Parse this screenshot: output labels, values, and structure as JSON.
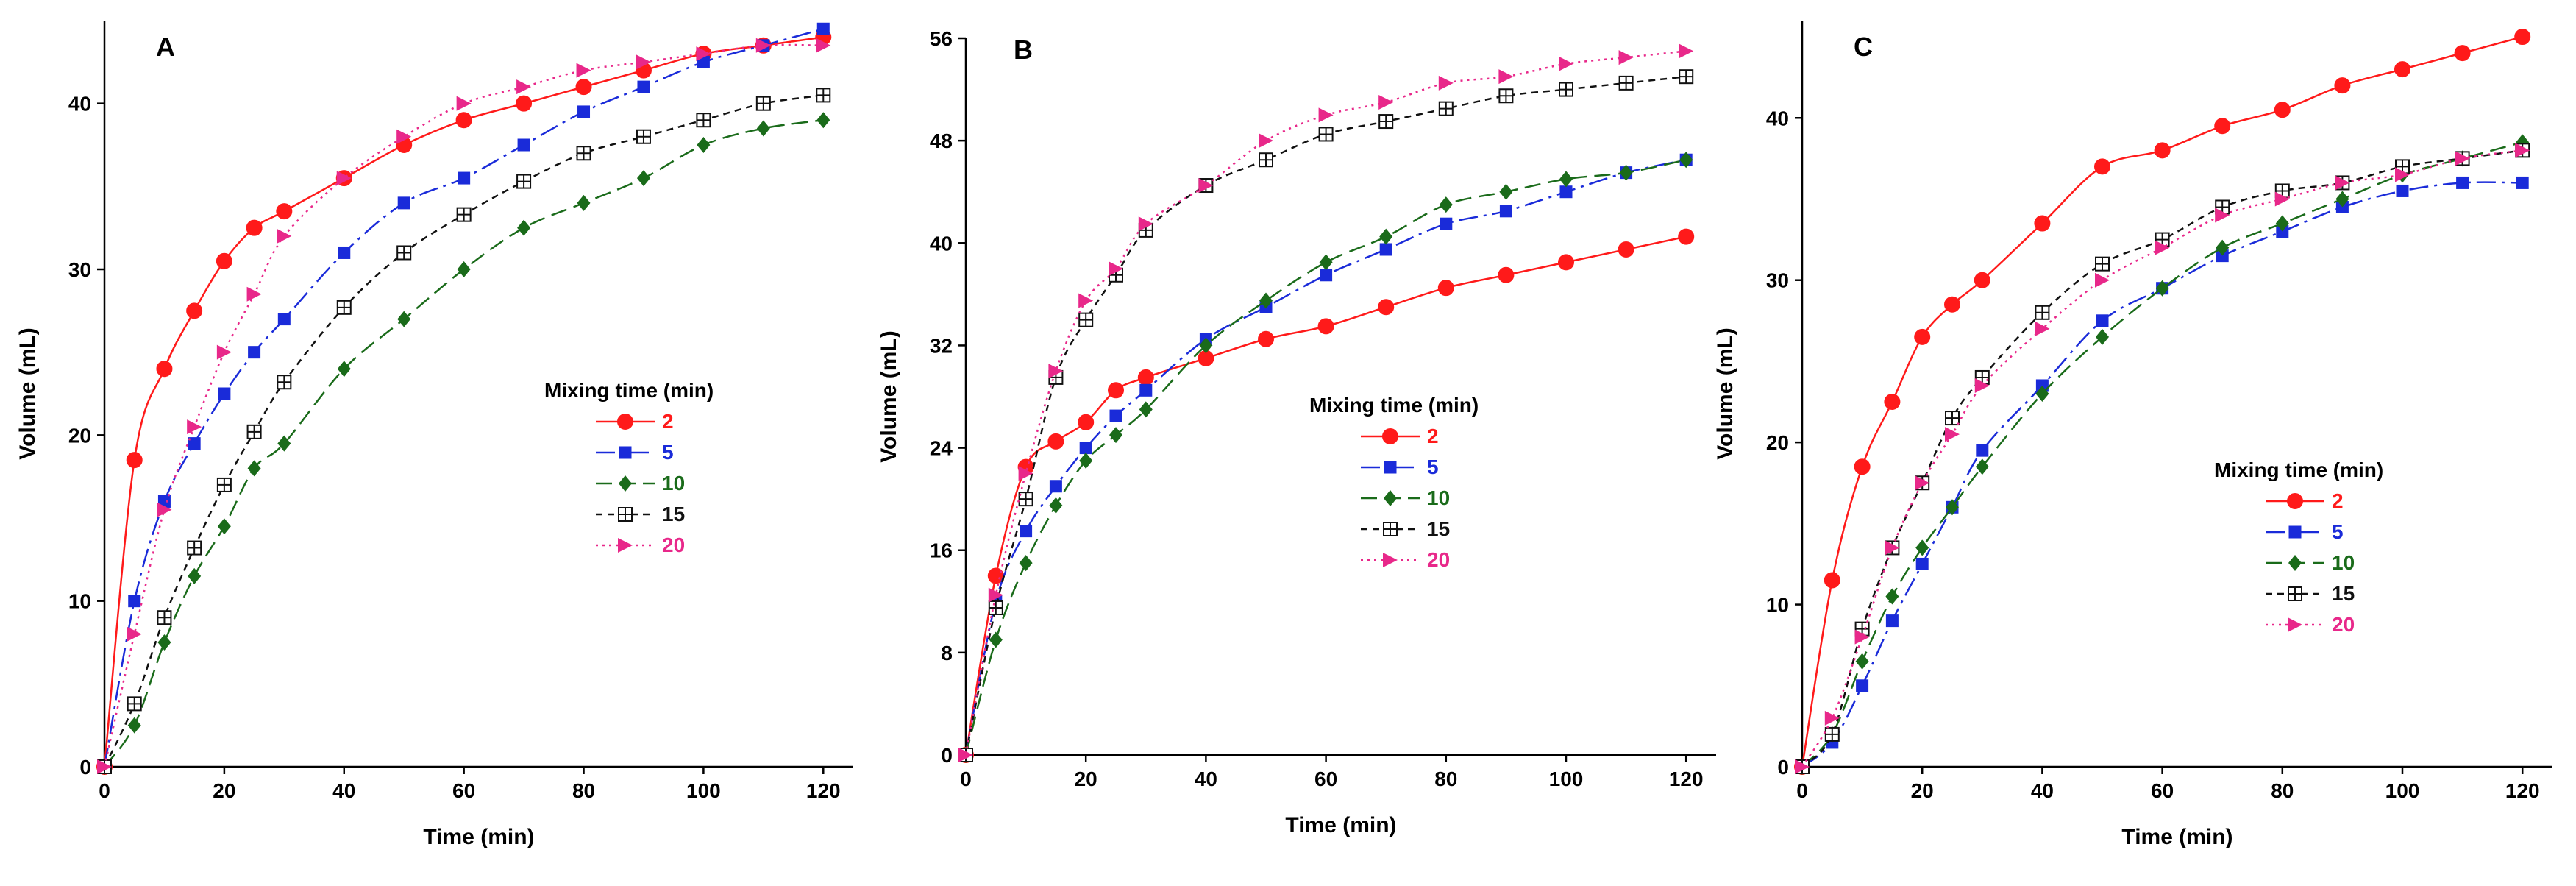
{
  "figure": {
    "description_label": "Three-panel chart of volume vs. time for different mixing times"
  },
  "chart_data": [
    {
      "type": "line",
      "panel_label": "A",
      "xlabel": "Time (min)",
      "ylabel": "Volume (mL)",
      "xlim": [
        0,
        125
      ],
      "ylim": [
        0,
        45
      ],
      "xticks": [
        0,
        20,
        40,
        60,
        80,
        100,
        120
      ],
      "yticks": [
        0,
        10,
        20,
        30,
        40
      ],
      "legend": {
        "title": "Mixing time (min)",
        "position": "center-right"
      },
      "series": [
        {
          "name": "2",
          "color": "#ff1a1a",
          "marker": "circle",
          "line": "solid",
          "x": [
            0,
            5,
            10,
            15,
            20,
            25,
            30,
            40,
            50,
            60,
            70,
            80,
            90,
            100,
            110,
            120
          ],
          "y": [
            0,
            18.5,
            24,
            27.5,
            30.5,
            32.5,
            33.5,
            35.5,
            37.5,
            39,
            40,
            41,
            42,
            43,
            43.5,
            44
          ]
        },
        {
          "name": "5",
          "color": "#1a2bd9",
          "marker": "square",
          "line": "dashdot",
          "x": [
            0,
            5,
            10,
            15,
            20,
            25,
            30,
            40,
            50,
            60,
            70,
            80,
            90,
            100,
            110,
            120
          ],
          "y": [
            0,
            10,
            16,
            19.5,
            22.5,
            25,
            27,
            31,
            34,
            35.5,
            37.5,
            39.5,
            41,
            42.5,
            43.5,
            44.5
          ]
        },
        {
          "name": "10",
          "color": "#1a6b1a",
          "marker": "diamond",
          "line": "longdash",
          "x": [
            0,
            5,
            10,
            15,
            20,
            25,
            30,
            40,
            50,
            60,
            70,
            80,
            90,
            100,
            110,
            120
          ],
          "y": [
            0,
            2.5,
            7.5,
            11.5,
            14.5,
            18,
            19.5,
            24,
            27,
            30,
            32.5,
            34,
            35.5,
            37.5,
            38.5,
            39
          ]
        },
        {
          "name": "15",
          "color": "#111111",
          "marker": "crossbox",
          "line": "shortdash",
          "x": [
            0,
            5,
            10,
            15,
            20,
            25,
            30,
            40,
            50,
            60,
            70,
            80,
            90,
            100,
            110,
            120
          ],
          "y": [
            0,
            3.8,
            9,
            13.2,
            17,
            20.2,
            23.2,
            27.7,
            31,
            33.3,
            35.3,
            37,
            38,
            39,
            40,
            40.5
          ]
        },
        {
          "name": "20",
          "color": "#e8288a",
          "marker": "triangle",
          "line": "dotted",
          "x": [
            0,
            5,
            10,
            15,
            20,
            25,
            30,
            40,
            50,
            60,
            70,
            80,
            90,
            100,
            110,
            120
          ],
          "y": [
            0,
            8,
            15.5,
            20.5,
            25,
            28.5,
            32,
            35.5,
            38,
            40,
            41,
            42,
            42.5,
            43,
            43.5,
            43.5
          ]
        }
      ]
    },
    {
      "type": "line",
      "panel_label": "B",
      "xlabel": "Time (min)",
      "ylabel": "Volume (mL)",
      "xlim": [
        0,
        125
      ],
      "ylim": [
        0,
        56
      ],
      "xticks": [
        0,
        20,
        40,
        60,
        80,
        100,
        120
      ],
      "yticks": [
        0,
        8,
        16,
        24,
        32,
        40,
        48,
        56
      ],
      "legend": {
        "title": "Mixing time (min)",
        "position": "center"
      },
      "series": [
        {
          "name": "2",
          "color": "#ff1a1a",
          "marker": "circle",
          "line": "solid",
          "x": [
            0,
            5,
            10,
            15,
            20,
            25,
            30,
            40,
            50,
            60,
            70,
            80,
            90,
            100,
            110,
            120
          ],
          "y": [
            0,
            14,
            22.5,
            24.5,
            26,
            28.5,
            29.5,
            31,
            32.5,
            33.5,
            35,
            36.5,
            37.5,
            38.5,
            39.5,
            40.5
          ]
        },
        {
          "name": "5",
          "color": "#1a2bd9",
          "marker": "square",
          "line": "dashdot",
          "x": [
            0,
            5,
            10,
            15,
            20,
            25,
            30,
            40,
            50,
            60,
            70,
            80,
            90,
            100,
            110,
            120
          ],
          "y": [
            0,
            12,
            17.5,
            21,
            24,
            26.5,
            28.5,
            32.5,
            35,
            37.5,
            39.5,
            41.5,
            42.5,
            44,
            45.5,
            46.5
          ]
        },
        {
          "name": "10",
          "color": "#1a6b1a",
          "marker": "diamond",
          "line": "longdash",
          "x": [
            0,
            5,
            10,
            15,
            20,
            25,
            30,
            40,
            50,
            60,
            70,
            80,
            90,
            100,
            110,
            120
          ],
          "y": [
            0,
            9,
            15,
            19.5,
            23,
            25,
            27,
            32,
            35.5,
            38.5,
            40.5,
            43,
            44,
            45,
            45.5,
            46.5
          ]
        },
        {
          "name": "15",
          "color": "#111111",
          "marker": "crossbox",
          "line": "shortdash",
          "x": [
            0,
            5,
            10,
            15,
            20,
            25,
            30,
            40,
            50,
            60,
            70,
            80,
            90,
            100,
            110,
            120
          ],
          "y": [
            0,
            11.5,
            20,
            29.5,
            34,
            37.5,
            41,
            44.5,
            46.5,
            48.5,
            49.5,
            50.5,
            51.5,
            52,
            52.5,
            53
          ]
        },
        {
          "name": "20",
          "color": "#e8288a",
          "marker": "triangle",
          "line": "dotted",
          "x": [
            0,
            5,
            10,
            15,
            20,
            25,
            30,
            40,
            50,
            60,
            70,
            80,
            90,
            100,
            110,
            120
          ],
          "y": [
            0,
            12.5,
            22,
            30,
            35.5,
            38,
            41.5,
            44.5,
            48,
            50,
            51,
            52.5,
            53,
            54,
            54.5,
            55
          ]
        }
      ]
    },
    {
      "type": "line",
      "panel_label": "C",
      "xlabel": "Time (min)",
      "ylabel": "Volume (mL)",
      "xlim": [
        0,
        125
      ],
      "ylim": [
        0,
        46
      ],
      "xticks": [
        0,
        20,
        40,
        60,
        80,
        100,
        120
      ],
      "yticks": [
        0,
        10,
        20,
        30,
        40
      ],
      "legend": {
        "title": "Mixing time (min)",
        "position": "center-right"
      },
      "series": [
        {
          "name": "2",
          "color": "#ff1a1a",
          "marker": "circle",
          "line": "solid",
          "x": [
            0,
            5,
            10,
            15,
            20,
            25,
            30,
            40,
            50,
            60,
            70,
            80,
            90,
            100,
            110,
            120
          ],
          "y": [
            0,
            11.5,
            18.5,
            22.5,
            26.5,
            28.5,
            30,
            33.5,
            37,
            38,
            39.5,
            40.5,
            42,
            43,
            44,
            45
          ]
        },
        {
          "name": "5",
          "color": "#1a2bd9",
          "marker": "square",
          "line": "dashdot",
          "x": [
            0,
            5,
            10,
            15,
            20,
            25,
            30,
            40,
            50,
            60,
            70,
            80,
            90,
            100,
            110,
            120
          ],
          "y": [
            0,
            1.5,
            5,
            9,
            12.5,
            16,
            19.5,
            23.5,
            27.5,
            29.5,
            31.5,
            33,
            34.5,
            35.5,
            36,
            36
          ]
        },
        {
          "name": "10",
          "color": "#1a6b1a",
          "marker": "diamond",
          "line": "longdash",
          "x": [
            0,
            5,
            10,
            15,
            20,
            25,
            30,
            40,
            50,
            60,
            70,
            80,
            90,
            100,
            110,
            120
          ],
          "y": [
            0,
            2,
            6.5,
            10.5,
            13.5,
            16,
            18.5,
            23,
            26.5,
            29.5,
            32,
            33.5,
            35,
            36.5,
            37.5,
            38.5
          ]
        },
        {
          "name": "15",
          "color": "#111111",
          "marker": "crossbox",
          "line": "shortdash",
          "x": [
            0,
            5,
            10,
            15,
            20,
            25,
            30,
            40,
            50,
            60,
            70,
            80,
            90,
            100,
            110,
            120
          ],
          "y": [
            0,
            2,
            8.5,
            13.5,
            17.5,
            21.5,
            24,
            28,
            31,
            32.5,
            34.5,
            35.5,
            36,
            37,
            37.5,
            38
          ]
        },
        {
          "name": "20",
          "color": "#e8288a",
          "marker": "triangle",
          "line": "dotted",
          "x": [
            0,
            5,
            10,
            15,
            20,
            25,
            30,
            40,
            50,
            60,
            70,
            80,
            90,
            100,
            110,
            120
          ],
          "y": [
            0,
            3,
            8,
            13.5,
            17.5,
            20.5,
            23.5,
            27,
            30,
            32,
            34,
            35,
            36,
            36.5,
            37.5,
            38
          ]
        }
      ]
    }
  ]
}
